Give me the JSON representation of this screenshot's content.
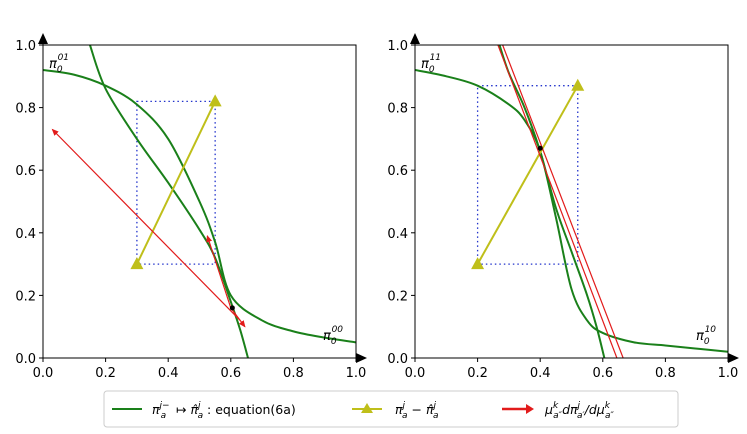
{
  "chart_data": [
    {
      "type": "line",
      "panel": "left",
      "xlim": [
        0,
        1
      ],
      "ylim": [
        0,
        1
      ],
      "xticks": [
        "0.0",
        "0.2",
        "0.4",
        "0.6",
        "0.8",
        "1.0"
      ],
      "yticks": [
        "0.0",
        "0.2",
        "0.4",
        "0.6",
        "0.8",
        "1.0"
      ],
      "corner_label_top_left": {
        "base": "π",
        "sub": "0",
        "sup": "01"
      },
      "corner_label_bottom_right": {
        "base": "π",
        "sub": "0",
        "sup": "00"
      },
      "series": [
        {
          "name": "curve_a",
          "role": "equation(6a)",
          "color": "#1a801a",
          "points": [
            [
              0,
              0.92
            ],
            [
              0.1,
              0.905
            ],
            [
              0.2,
              0.87
            ],
            [
              0.3,
              0.81
            ],
            [
              0.4,
              0.7
            ],
            [
              0.5,
              0.5
            ],
            [
              0.55,
              0.37
            ],
            [
              0.6,
              0.2
            ],
            [
              0.7,
              0.12
            ],
            [
              0.8,
              0.085
            ],
            [
              0.9,
              0.065
            ],
            [
              1.0,
              0.05
            ]
          ]
        },
        {
          "name": "curve_b",
          "role": "equation(6a)",
          "color": "#1a801a",
          "points": [
            [
              0.15,
              1.0
            ],
            [
              0.2,
              0.86
            ],
            [
              0.3,
              0.7
            ],
            [
              0.4,
              0.56
            ],
            [
              0.5,
              0.41
            ],
            [
              0.55,
              0.32
            ],
            [
              0.6,
              0.18
            ],
            [
              0.63,
              0.09
            ],
            [
              0.655,
              0.0
            ]
          ]
        },
        {
          "name": "yellow_triangle_line",
          "color": "#bfbf1a",
          "points": [
            [
              0.3,
              0.3
            ],
            [
              0.55,
              0.82
            ]
          ]
        },
        {
          "name": "red_arrow_long",
          "color": "#e21b1b",
          "from": [
            0.63,
            0.12
          ],
          "to": [
            0.03,
            0.73
          ]
        },
        {
          "name": "red_arrow_short_up",
          "color": "#e21b1b",
          "from": [
            0.6,
            0.16
          ],
          "to": [
            0.525,
            0.39
          ]
        },
        {
          "name": "red_arrow_short_down",
          "color": "#e21b1b",
          "from": [
            0.6,
            0.16
          ],
          "to": [
            0.645,
            0.1
          ]
        }
      ],
      "dotted_box": {
        "x": [
          0.3,
          0.55
        ],
        "y": [
          0.3,
          0.82
        ],
        "color": "#2233cc"
      },
      "fixed_point": [
        0.605,
        0.16
      ]
    },
    {
      "type": "line",
      "panel": "right",
      "xlim": [
        0,
        1
      ],
      "ylim": [
        0,
        1
      ],
      "xticks": [
        "0.0",
        "0.2",
        "0.4",
        "0.6",
        "0.8",
        "1.0"
      ],
      "yticks": [
        "0.0",
        "0.2",
        "0.4",
        "0.6",
        "0.8",
        "1.0"
      ],
      "corner_label_top_left": {
        "base": "π",
        "sub": "0",
        "sup": "11"
      },
      "corner_label_bottom_right": {
        "base": "π",
        "sub": "0",
        "sup": "10"
      },
      "series": [
        {
          "name": "curve_a",
          "role": "equation(6a)",
          "color": "#1a801a",
          "points": [
            [
              0,
              0.92
            ],
            [
              0.1,
              0.9
            ],
            [
              0.2,
              0.87
            ],
            [
              0.3,
              0.81
            ],
            [
              0.35,
              0.76
            ],
            [
              0.4,
              0.66
            ],
            [
              0.45,
              0.45
            ],
            [
              0.5,
              0.22
            ],
            [
              0.55,
              0.12
            ],
            [
              0.6,
              0.08
            ],
            [
              0.7,
              0.05
            ],
            [
              0.8,
              0.04
            ],
            [
              0.9,
              0.03
            ],
            [
              1.0,
              0.02
            ]
          ]
        },
        {
          "name": "curve_b",
          "role": "equation(6a)",
          "color": "#1a801a",
          "points": [
            [
              0.27,
              1.0
            ],
            [
              0.3,
              0.91
            ],
            [
              0.35,
              0.8
            ],
            [
              0.4,
              0.66
            ],
            [
              0.45,
              0.48
            ],
            [
              0.5,
              0.34
            ],
            [
              0.55,
              0.2
            ],
            [
              0.58,
              0.1
            ],
            [
              0.605,
              0.0
            ]
          ]
        },
        {
          "name": "yellow_triangle_line",
          "color": "#bfbf1a",
          "points": [
            [
              0.2,
              0.3
            ],
            [
              0.52,
              0.87
            ]
          ]
        },
        {
          "name": "red_line_1",
          "color": "#e21b1b",
          "from": [
            0.265,
            1.0
          ],
          "to": [
            0.645,
            0.0
          ]
        },
        {
          "name": "red_line_2",
          "color": "#e21b1b",
          "from": [
            0.28,
            1.0
          ],
          "to": [
            0.665,
            0.0
          ]
        }
      ],
      "dotted_box": {
        "x": [
          0.2,
          0.52
        ],
        "y": [
          0.3,
          0.87
        ],
        "color": "#2233cc"
      },
      "fixed_point": [
        0.4,
        0.67
      ]
    }
  ],
  "legend": {
    "items": [
      {
        "type": "line",
        "color": "#1a801a",
        "label": {
          "pre": "π",
          "sup1": "j−",
          "sub1": "a",
          "mid": " ↦ π̂",
          "sup2": "j",
          "sub2": "a",
          "post": " : equation(6a)"
        }
      },
      {
        "type": "triangle-line",
        "color": "#bfbf1a",
        "label": {
          "pre": "π",
          "sup1": "j",
          "sub1": "a",
          "mid": " − π̂",
          "sup2": "j",
          "sub2": "a",
          "post": ""
        }
      },
      {
        "type": "arrow",
        "color": "#e21b1b",
        "label": {
          "pre": "μ",
          "sup1": "k",
          "sub1": "a″",
          "mid": "dπ",
          "sup2": "j",
          "sub2": "a′",
          "post": "/dμ",
          "sup3": "k",
          "sub3": "a″"
        }
      }
    ]
  }
}
